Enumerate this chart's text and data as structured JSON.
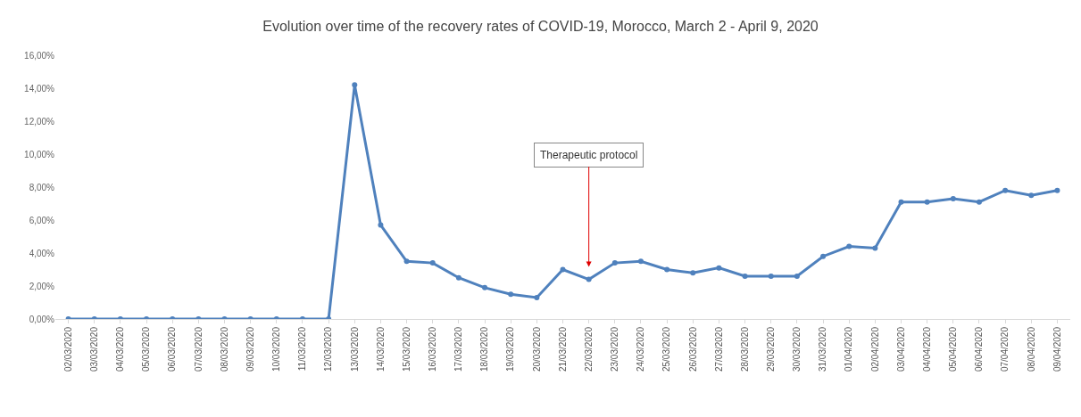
{
  "chart_data": {
    "type": "line",
    "title": "Evolution over time of the recovery rates of COVID-19, Morocco, March 2 - April 9, 2020",
    "categories": [
      "02/03/2020",
      "03/03/2020",
      "04/03/2020",
      "05/03/2020",
      "06/03/2020",
      "07/03/2020",
      "08/03/2020",
      "09/03/2020",
      "10/03/2020",
      "11/03/2020",
      "12/03/2020",
      "13/03/2020",
      "14/03/2020",
      "15/03/2020",
      "16/03/2020",
      "17/03/2020",
      "18/03/2020",
      "19/03/2020",
      "20/03/2020",
      "21/03/2020",
      "22/03/2020",
      "23/03/2020",
      "24/03/2020",
      "25/03/2020",
      "26/03/2020",
      "27/03/2020",
      "28/03/2020",
      "29/03/2020",
      "30/03/2020",
      "31/03/2020",
      "01/04/2020",
      "02/04/2020",
      "03/04/2020",
      "04/04/2020",
      "05/04/2020",
      "06/04/2020",
      "07/04/2020",
      "08/04/2020",
      "09/04/2020"
    ],
    "series": [
      {
        "color": "#4f81bd",
        "values": [
          0,
          0,
          0,
          0,
          0,
          0,
          0,
          0,
          0,
          0,
          0,
          14.2,
          5.7,
          3.5,
          3.4,
          2.5,
          1.9,
          1.5,
          1.3,
          3.0,
          2.4,
          3.4,
          3.5,
          3.0,
          2.8,
          3.1,
          2.6,
          2.6,
          2.6,
          3.8,
          4.4,
          4.3,
          7.1,
          7.1,
          7.3,
          7.1,
          7.8,
          7.5,
          7.8
        ]
      }
    ],
    "ylim": [
      0,
      16
    ],
    "yticks": [
      {
        "value": 0,
        "label": "0,00%"
      },
      {
        "value": 2,
        "label": "2,00%"
      },
      {
        "value": 4,
        "label": "4,00%"
      },
      {
        "value": 6,
        "label": "6,00%"
      },
      {
        "value": 8,
        "label": "8,00%"
      },
      {
        "value": 10,
        "label": "10,00%"
      },
      {
        "value": 12,
        "label": "12,00%"
      },
      {
        "value": 14,
        "label": "14,00%"
      },
      {
        "value": 16,
        "label": "16,00%"
      }
    ],
    "annotations": [
      {
        "text": "Therapeutic protocol",
        "x": "22/03/2020",
        "y": 2.4
      }
    ],
    "grid": false,
    "marker": "circle",
    "line_style": "solid"
  }
}
